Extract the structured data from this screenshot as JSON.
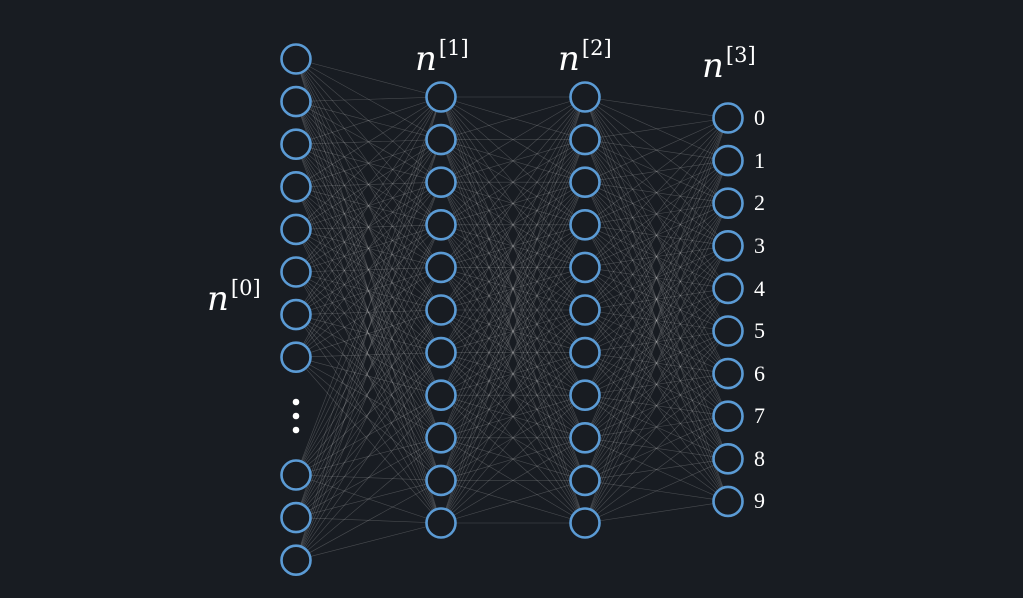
{
  "layers": [
    {
      "label_base": "n",
      "label_index": "[0]",
      "nodes_top": 8,
      "nodes_bottom": 3,
      "ellipsis": true
    },
    {
      "label_base": "n",
      "label_index": "[1]",
      "nodes": 11
    },
    {
      "label_base": "n",
      "label_index": "[2]",
      "nodes": 11
    },
    {
      "label_base": "n",
      "label_index": "[3]",
      "nodes": 10
    }
  ],
  "output_labels": [
    "0",
    "1",
    "2",
    "3",
    "4",
    "5",
    "6",
    "7",
    "8",
    "9"
  ],
  "colors": {
    "background": "#181c22",
    "node_stroke": "#5b9bd5",
    "edge": "#c8c8c8",
    "text": "#ffffff",
    "dots": "#ffffff"
  }
}
